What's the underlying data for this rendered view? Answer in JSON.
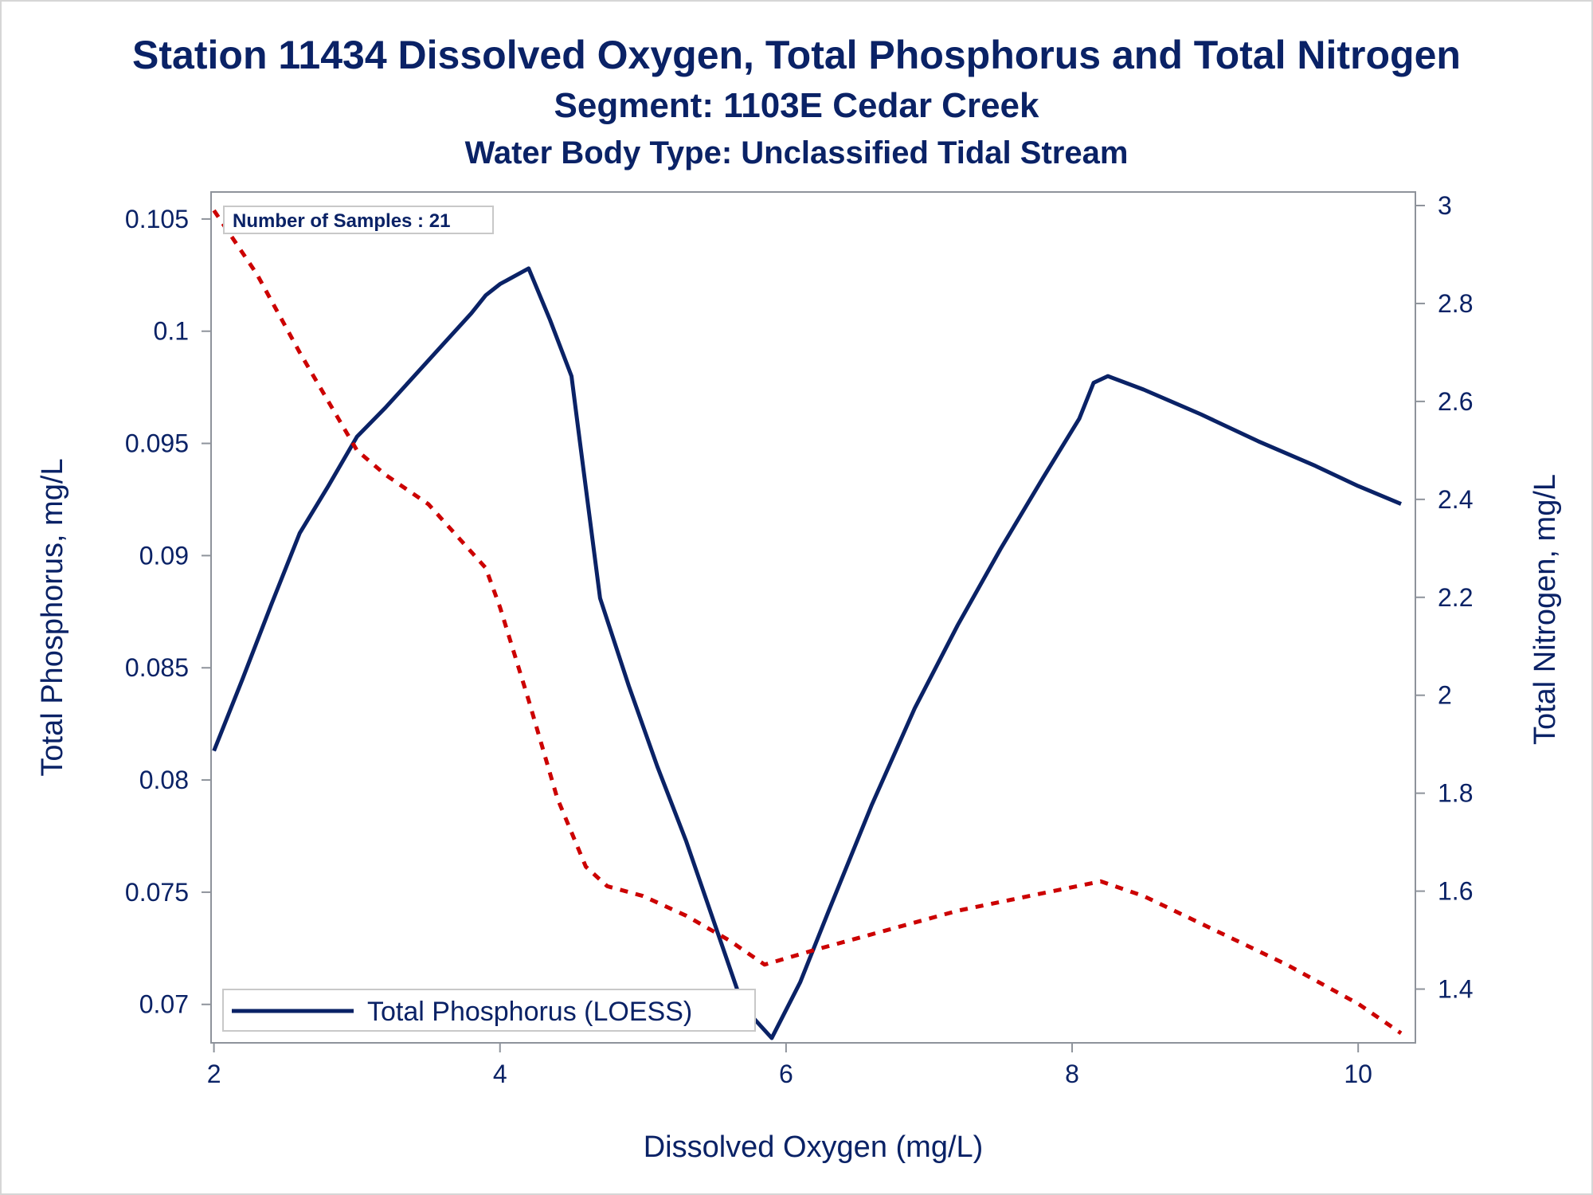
{
  "chart_data": {
    "type": "line",
    "title": "Station 11434  Dissolved Oxygen, Total Phosphorus and Total Nitrogen",
    "subtitle": [
      "Segment: 1103E  Cedar Creek",
      "Water Body Type: Unclassified Tidal Stream"
    ],
    "xlabel": "Dissolved Oxygen (mg/L)",
    "ylabel_left": "Total Phosphorus, mg/L",
    "ylabel_right": "Total Nitrogen, mg/L",
    "xlim": [
      1.98,
      10.4
    ],
    "x_ticks": [
      2,
      4,
      6,
      8,
      10
    ],
    "ylim_left": [
      0.0685,
      0.1056
    ],
    "y_ticks_left": [
      0.07,
      0.075,
      0.08,
      0.085,
      0.09,
      0.095,
      0.1,
      0.105
    ],
    "y_tick_labels_left": [
      "0.07",
      "0.075",
      "0.08",
      "0.085",
      "0.09",
      "0.095",
      "0.1",
      "0.105"
    ],
    "ylim_right": [
      1.3,
      3.0
    ],
    "y_ticks_right": [
      1.4,
      1.6,
      1.8,
      2.0,
      2.2,
      2.4,
      2.6,
      2.8,
      3.0
    ],
    "y_tick_labels_right": [
      "1.4",
      "1.6",
      "1.8",
      "2",
      "2.2",
      "2.4",
      "2.6",
      "2.8",
      "3"
    ],
    "legend_position": "bottom-left",
    "grid": false,
    "annotation": "Number of Samples : 21",
    "series": [
      {
        "name": "Total Phosphorus (LOESS)",
        "axis": "left",
        "color": "#0a2266",
        "style": "solid",
        "x": [
          2.0,
          2.2,
          2.4,
          2.6,
          2.8,
          3.0,
          3.2,
          3.4,
          3.6,
          3.8,
          3.9,
          4.0,
          4.2,
          4.35,
          4.5,
          4.55,
          4.7,
          4.9,
          5.1,
          5.3,
          5.5,
          5.7,
          5.9,
          6.1,
          6.3,
          6.6,
          6.9,
          7.2,
          7.5,
          7.8,
          8.05,
          8.15,
          8.25,
          8.5,
          8.9,
          9.3,
          9.7,
          10.0,
          10.3
        ],
        "y": [
          0.0813,
          0.0845,
          0.0878,
          0.091,
          0.0931,
          0.0953,
          0.0966,
          0.098,
          0.0994,
          0.1008,
          0.1016,
          0.1021,
          0.1028,
          0.1005,
          0.098,
          0.0955,
          0.0881,
          0.0842,
          0.0806,
          0.0773,
          0.0736,
          0.0699,
          0.0685,
          0.071,
          0.0742,
          0.0789,
          0.0832,
          0.0869,
          0.0903,
          0.0935,
          0.0961,
          0.0977,
          0.098,
          0.0974,
          0.0963,
          0.0951,
          0.094,
          0.0931,
          0.0923
        ]
      },
      {
        "name": "",
        "axis": "right",
        "color": "#cc0000",
        "style": "dashed",
        "x": [
          2.0,
          2.3,
          2.6,
          2.8,
          3.0,
          3.2,
          3.5,
          3.9,
          4.0,
          4.2,
          4.4,
          4.6,
          4.75,
          5.0,
          5.3,
          5.6,
          5.85,
          6.2,
          6.7,
          7.2,
          7.7,
          8.2,
          8.5,
          9.0,
          9.5,
          10.0,
          10.3
        ],
        "y": [
          2.99,
          2.86,
          2.7,
          2.6,
          2.5,
          2.45,
          2.39,
          2.26,
          2.18,
          1.99,
          1.79,
          1.65,
          1.61,
          1.59,
          1.55,
          1.5,
          1.45,
          1.48,
          1.52,
          1.56,
          1.59,
          1.62,
          1.59,
          1.52,
          1.45,
          1.37,
          1.31
        ]
      }
    ]
  }
}
